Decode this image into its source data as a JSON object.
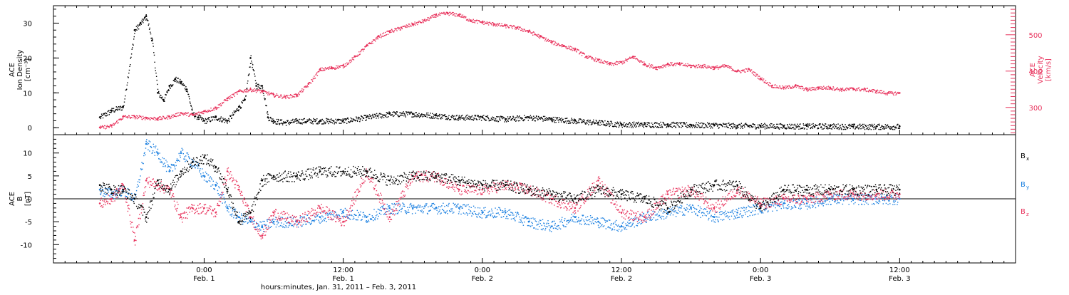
{
  "colors": {
    "black": "#000000",
    "pink": "#e8325c",
    "blue": "#1a7fe0"
  },
  "chart_data": [
    {
      "type": "scatter",
      "panel": "top",
      "left_axis": {
        "label_lines": [
          "ACE",
          "Ion Density",
          "[cm⁻³]"
        ],
        "ylim": [
          -2,
          35
        ],
        "ticks": [
          0,
          10,
          20,
          30
        ]
      },
      "right_axis": {
        "label_lines": [
          "ACE",
          "Velocity",
          "[km/s]"
        ],
        "ylim": [
          225,
          580
        ],
        "ticks": [
          300,
          400,
          500
        ],
        "color": "#e8325c"
      },
      "series": [
        {
          "color": "#000000",
          "axis": "left",
          "x": [
            -9,
            -8,
            -7,
            -6,
            -5.5,
            -5,
            -4.5,
            -4,
            -3.5,
            -3,
            -2.5,
            -2,
            -1.5,
            -1,
            -0.5,
            0,
            1,
            2,
            3,
            3.5,
            4,
            4.5,
            5,
            5.5,
            6,
            7,
            8,
            10,
            12,
            14,
            16,
            18,
            20,
            22,
            24,
            26,
            28,
            30,
            32,
            34,
            36,
            38,
            40,
            42,
            44,
            46,
            48,
            50,
            52,
            54,
            56,
            58,
            60
          ],
          "y": [
            3,
            5,
            6,
            28,
            30,
            32,
            25,
            10,
            8,
            12,
            14,
            13,
            11,
            4,
            3,
            2,
            3,
            2,
            6,
            8,
            20,
            12,
            12,
            3,
            2,
            1.5,
            2,
            2,
            2,
            3,
            4,
            4,
            3.5,
            3,
            3,
            2.5,
            3,
            2.5,
            2,
            1.5,
            1,
            1,
            1,
            0.8,
            0.8,
            0.6,
            0.6,
            0.5,
            0.5,
            0.5,
            0.4,
            0.4,
            0.4
          ]
        },
        {
          "color": "#e8325c",
          "axis": "right",
          "x": [
            -9,
            -8,
            -7,
            -6,
            -5,
            -4,
            -3,
            -2,
            -1,
            0,
            1,
            2,
            3,
            4,
            5,
            6,
            7,
            8,
            9,
            10,
            11,
            12,
            13,
            14,
            15,
            16,
            17,
            18,
            19,
            20,
            21,
            22,
            23,
            24,
            25,
            26,
            27,
            28,
            29,
            30,
            31,
            32,
            33,
            34,
            35,
            36,
            37,
            38,
            39,
            40,
            41,
            42,
            43,
            44,
            45,
            46,
            47,
            48,
            49,
            50,
            51,
            52,
            53,
            54,
            55,
            56,
            57,
            58,
            59,
            60
          ],
          "y": [
            245,
            250,
            275,
            275,
            272,
            270,
            275,
            285,
            280,
            290,
            300,
            325,
            345,
            350,
            345,
            335,
            330,
            335,
            365,
            405,
            410,
            415,
            440,
            470,
            495,
            510,
            520,
            530,
            540,
            555,
            560,
            555,
            540,
            535,
            530,
            525,
            520,
            510,
            495,
            480,
            470,
            460,
            440,
            430,
            420,
            425,
            440,
            420,
            410,
            420,
            420,
            415,
            415,
            410,
            415,
            400,
            405,
            380,
            360,
            355,
            360,
            350,
            355,
            355,
            350,
            352,
            350,
            345,
            340,
            340
          ]
        }
      ]
    },
    {
      "type": "scatter",
      "panel": "bottom",
      "left_axis": {
        "label_lines": [
          "ACE",
          "B",
          "[nT]"
        ],
        "ylim": [
          -14,
          14
        ],
        "ticks": [
          -10,
          -5,
          0,
          5,
          10
        ]
      },
      "legend": [
        {
          "label": "B",
          "sub": "x",
          "color": "#000000"
        },
        {
          "label": "B",
          "sub": "y",
          "color": "#1a7fe0"
        },
        {
          "label": "B",
          "sub": "z",
          "color": "#e8325c"
        }
      ],
      "series": [
        {
          "color": "#000000",
          "x": [
            -9,
            -8,
            -7,
            -6,
            -5,
            -4,
            -3,
            -2,
            -1,
            0,
            1,
            2,
            3,
            4,
            5,
            6,
            8,
            10,
            12,
            14,
            16,
            18,
            20,
            22,
            24,
            26,
            28,
            30,
            32,
            34,
            36,
            38,
            40,
            42,
            44,
            46,
            48,
            50,
            52,
            54,
            56,
            58,
            60
          ],
          "y": [
            3,
            2,
            2,
            0,
            -4,
            4,
            2,
            6,
            8,
            9,
            7,
            2,
            -5,
            -3,
            4,
            5,
            5,
            6,
            6,
            6,
            4,
            5,
            5,
            4,
            3,
            3,
            2,
            1,
            0,
            2,
            1,
            0,
            -2,
            2,
            3,
            3,
            -2,
            2,
            2,
            2,
            2,
            2,
            2
          ]
        },
        {
          "color": "#1a7fe0",
          "x": [
            -9,
            -8,
            -7,
            -6,
            -5,
            -4,
            -3,
            -2,
            -1,
            0,
            1,
            2,
            3,
            4,
            5,
            6,
            8,
            10,
            12,
            14,
            16,
            18,
            20,
            22,
            24,
            26,
            28,
            30,
            32,
            34,
            36,
            38,
            40,
            42,
            44,
            46,
            48,
            50,
            52,
            54,
            56,
            58,
            60
          ],
          "y": [
            2,
            1,
            2,
            0,
            12,
            10,
            6,
            10,
            8,
            5,
            3,
            -2,
            -4,
            -5,
            -6,
            -5,
            -5,
            -4,
            -3,
            -4,
            -2,
            -2,
            -2,
            -2,
            -3,
            -3,
            -5,
            -6,
            -4,
            -5,
            -6,
            -4,
            -3,
            -2,
            -4,
            -3,
            -2,
            -1,
            -1,
            0,
            0,
            0,
            0
          ]
        },
        {
          "color": "#e8325c",
          "x": [
            -9,
            -8,
            -7,
            -6,
            -5,
            -4,
            -3,
            -2,
            -1,
            0,
            1,
            2,
            3,
            4,
            5,
            6,
            8,
            10,
            12,
            14,
            16,
            18,
            20,
            22,
            24,
            26,
            28,
            30,
            32,
            34,
            36,
            38,
            40,
            42,
            44,
            46,
            48,
            50,
            52,
            54,
            56,
            58,
            60
          ],
          "y": [
            -1,
            0,
            3,
            -9,
            4,
            3,
            2,
            -4,
            -2,
            -2,
            -3,
            6,
            2,
            -4,
            -8,
            -3,
            -5,
            -2,
            -5,
            6,
            -4,
            5,
            5,
            2,
            2,
            3,
            2,
            0,
            -2,
            4,
            -3,
            -4,
            1,
            2,
            -2,
            2,
            -1,
            0,
            0,
            1,
            1,
            1,
            1
          ]
        }
      ]
    }
  ],
  "x_axis": {
    "xlim": [
      -13,
      70
    ],
    "ticks": [
      {
        "x": 0,
        "time": "0:00",
        "date": "Feb. 1"
      },
      {
        "x": 12,
        "time": "12:00",
        "date": "Feb. 1"
      },
      {
        "x": 24,
        "time": "0:00",
        "date": "Feb. 2"
      },
      {
        "x": 36,
        "time": "12:00",
        "date": "Feb. 2"
      },
      {
        "x": 48,
        "time": "0:00",
        "date": "Feb. 3"
      },
      {
        "x": 60,
        "time": "12:00",
        "date": "Feb. 3"
      }
    ],
    "label": "hours:minutes, Jan. 31, 2011 – Feb.  3, 2011"
  }
}
